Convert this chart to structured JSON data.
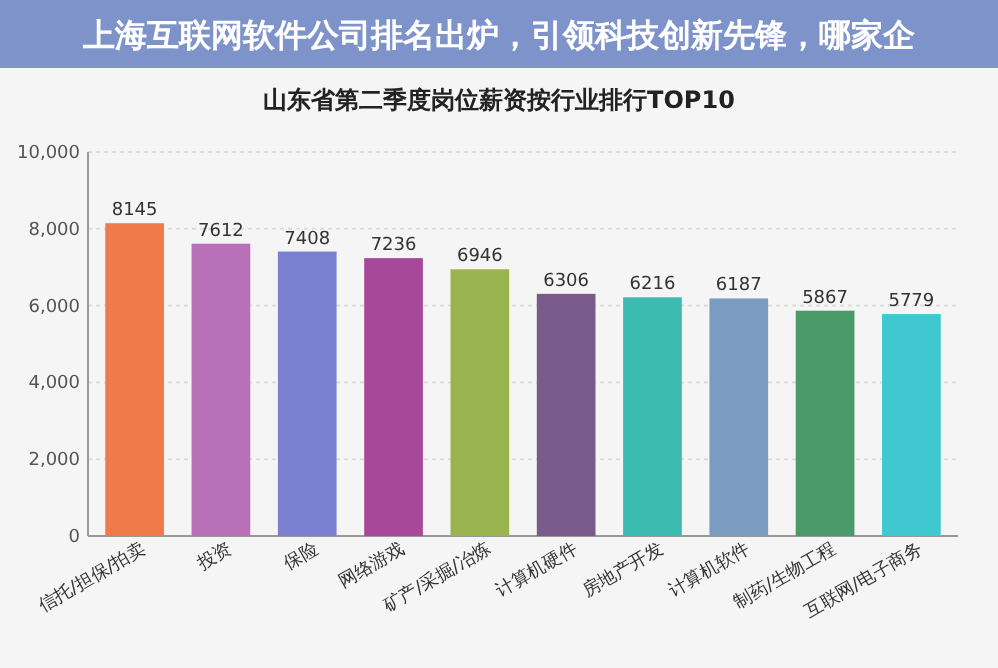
{
  "chart_data": {
    "type": "bar",
    "title": "山东省第二季度岗位薪资按行业排行TOP10",
    "annotations": [
      "上海互联网软件公司排名出炉，引领科技创新先锋，哪家企"
    ],
    "categories": [
      "信托/担保/拍卖",
      "投资",
      "保险",
      "网络游戏",
      "矿产/采掘/冶炼",
      "计算机硬件",
      "房地产开发",
      "计算机软件",
      "制药/生物工程",
      "互联网/电子商务"
    ],
    "values": [
      8145,
      7612,
      7408,
      7236,
      6946,
      6306,
      6216,
      6187,
      5867,
      5779
    ],
    "colors": [
      "#f07a4a",
      "#b870b8",
      "#7b7fcf",
      "#a8489a",
      "#9ab550",
      "#7a5a8a",
      "#3cbcb0",
      "#7a9cc0",
      "#4a9a6a",
      "#40c8d0"
    ],
    "ylim": [
      0,
      10000
    ],
    "yticks": [
      {
        "value": 0,
        "label": "0"
      },
      {
        "value": 2000,
        "label": "2,000"
      },
      {
        "value": 4000,
        "label": "4,000"
      },
      {
        "value": 6000,
        "label": "6,000"
      },
      {
        "value": 8000,
        "label": "8,000"
      },
      {
        "value": 10000,
        "label": "10,000"
      }
    ],
    "grid": "y",
    "data_labels": true
  }
}
